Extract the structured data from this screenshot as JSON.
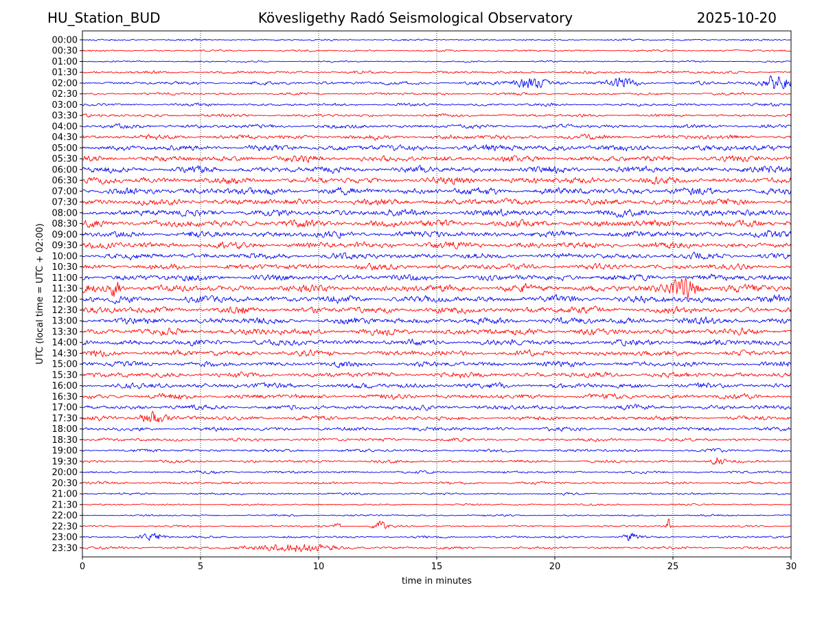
{
  "header": {
    "station": "HU_Station_BUD",
    "title": "Kövesligethy Radó Seismological Observatory",
    "date": "2025-10-20"
  },
  "chart_data": {
    "type": "line",
    "title": "Kövesligethy Radó Seismological Observatory",
    "xlabel": "time in minutes",
    "ylabel": "UTC (local time = UTC + 02:00)",
    "xlim": [
      0,
      30
    ],
    "xticks": [
      0,
      5,
      10,
      15,
      20,
      25,
      30
    ],
    "vertical_gridlines_at": [
      5,
      10,
      15,
      20,
      25
    ],
    "colors": {
      "even_rows": "#0000ee",
      "odd_rows": "#ff0000"
    },
    "row_labels": [
      "00:00",
      "00:30",
      "01:00",
      "01:30",
      "02:00",
      "02:30",
      "03:00",
      "03:30",
      "04:00",
      "04:30",
      "05:00",
      "05:30",
      "06:00",
      "06:30",
      "07:00",
      "07:30",
      "08:00",
      "08:30",
      "09:00",
      "09:30",
      "10:00",
      "10:30",
      "11:00",
      "11:30",
      "12:00",
      "12:30",
      "13:00",
      "13:30",
      "14:00",
      "14:30",
      "15:00",
      "15:30",
      "16:00",
      "16:30",
      "17:00",
      "17:30",
      "18:00",
      "18:30",
      "19:00",
      "19:30",
      "20:00",
      "20:30",
      "21:00",
      "21:30",
      "22:00",
      "22:30",
      "23:00",
      "23:30"
    ],
    "noise_level": [
      0.1,
      0.1,
      0.09,
      0.15,
      0.18,
      0.14,
      0.16,
      0.16,
      0.22,
      0.26,
      0.34,
      0.34,
      0.36,
      0.36,
      0.38,
      0.36,
      0.38,
      0.4,
      0.36,
      0.36,
      0.34,
      0.32,
      0.34,
      0.4,
      0.38,
      0.38,
      0.36,
      0.36,
      0.34,
      0.32,
      0.3,
      0.3,
      0.3,
      0.28,
      0.26,
      0.24,
      0.22,
      0.18,
      0.16,
      0.16,
      0.14,
      0.14,
      0.12,
      0.1,
      0.1,
      0.1,
      0.12,
      0.14
    ],
    "events": [
      {
        "row": 4,
        "minute": 19.0,
        "amplitude": 0.55,
        "duration": 1.5
      },
      {
        "row": 4,
        "minute": 22.9,
        "amplitude": 0.45,
        "duration": 1.2
      },
      {
        "row": 4,
        "minute": 29.5,
        "amplitude": 0.8,
        "duration": 1.5
      },
      {
        "row": 23,
        "minute": 1.4,
        "amplitude": 0.9,
        "duration": 0.4
      },
      {
        "row": 23,
        "minute": 25.6,
        "amplitude": 1.05,
        "duration": 1.2
      },
      {
        "row": 35,
        "minute": 3.0,
        "amplitude": 0.6,
        "duration": 1.0
      },
      {
        "row": 39,
        "minute": 26.9,
        "amplitude": 0.75,
        "duration": 0.4
      },
      {
        "row": 45,
        "minute": 10.8,
        "amplitude": 0.7,
        "duration": 0.2
      },
      {
        "row": 45,
        "minute": 12.6,
        "amplitude": 0.5,
        "duration": 0.6
      },
      {
        "row": 45,
        "minute": 24.8,
        "amplitude": 0.8,
        "duration": 0.2
      },
      {
        "row": 46,
        "minute": 3.0,
        "amplitude": 0.45,
        "duration": 1.0
      },
      {
        "row": 46,
        "minute": 23.2,
        "amplitude": 0.5,
        "duration": 0.6
      },
      {
        "row": 47,
        "minute": 9.0,
        "amplitude": 0.45,
        "duration": 3.0
      }
    ]
  }
}
